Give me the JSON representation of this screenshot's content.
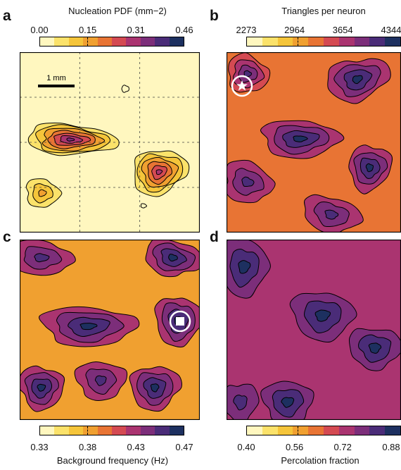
{
  "panels": [
    {
      "letter": "a",
      "title": "Nucleation PDF (mm−2)",
      "ticks": [
        "0.00",
        "0.15",
        "0.31",
        "0.46"
      ],
      "scalebar": "1 mm"
    },
    {
      "letter": "b",
      "title": "Triangles per neuron",
      "ticks": [
        "2273",
        "2964",
        "3654",
        "4344"
      ]
    },
    {
      "letter": "c",
      "title": "Background frequency (Hz)",
      "ticks": [
        "0.33",
        "0.38",
        "0.43",
        "0.47"
      ]
    },
    {
      "letter": "d",
      "title": "Percolation fraction",
      "ticks": [
        "0.40",
        "0.56",
        "0.72",
        "0.88"
      ]
    }
  ],
  "colormap": [
    "#fff7bf",
    "#fbe26a",
    "#f5c53a",
    "#f0a030",
    "#e87434",
    "#d44a52",
    "#aa3470",
    "#7c2e7a",
    "#4a2c78",
    "#1d3060"
  ],
  "markers": {
    "star": "star-marker",
    "square": "square-marker"
  }
}
